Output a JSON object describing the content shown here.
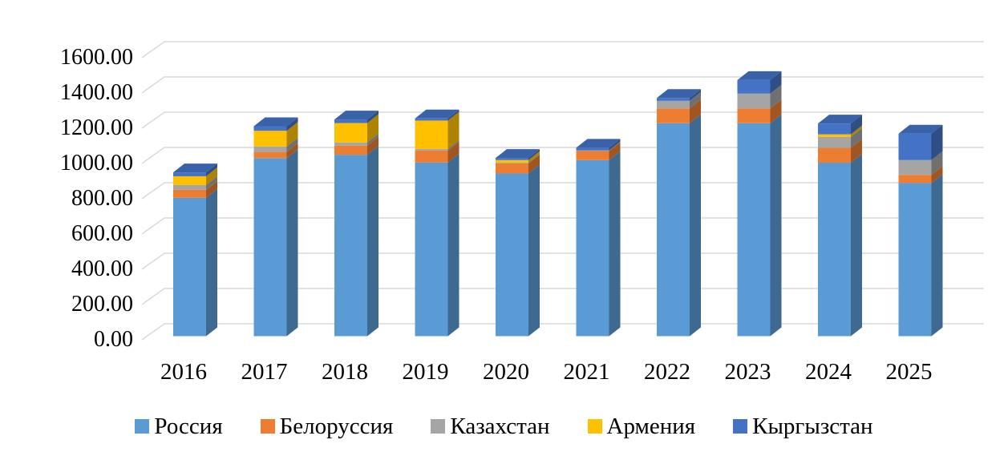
{
  "chart_data": {
    "type": "bar",
    "variant": "stacked-column-3d",
    "title": "",
    "xlabel": "",
    "ylabel": "",
    "grid": true,
    "legend_position": "bottom",
    "ylim": [
      0,
      1600
    ],
    "ytick_step": 200,
    "ytick_labels": [
      "0.00",
      "200.00",
      "400.00",
      "600.00",
      "800.00",
      "1000.00",
      "1200.00",
      "1400.00",
      "1600.00"
    ],
    "categories": [
      "2016",
      "2017",
      "2018",
      "2019",
      "2020",
      "2021",
      "2022",
      "2023",
      "2024",
      "2025"
    ],
    "series": [
      {
        "name": "Россия",
        "color": "#5B9BD5",
        "values": [
          785,
          1010,
          1029,
          985,
          923,
          999,
          1208,
          1208,
          984,
          869
        ]
      },
      {
        "name": "Белоруссия",
        "color": "#ED7D31",
        "values": [
          45,
          35,
          52,
          68,
          57,
          51,
          84,
          84,
          84,
          46
        ]
      },
      {
        "name": "Казахстан",
        "color": "#A5A5A5",
        "values": [
          27,
          31,
          18,
          9,
          4,
          4,
          43,
          84,
          62,
          84
        ]
      },
      {
        "name": "Армения",
        "color": "#FFC000",
        "values": [
          50,
          89,
          110,
          161,
          15,
          0,
          0,
          0,
          15,
          0
        ]
      },
      {
        "name": "Кыргызстан",
        "color": "#4472C4",
        "values": [
          22,
          26,
          20,
          12,
          12,
          15,
          16,
          77,
          61,
          150
        ]
      }
    ],
    "totals": [
      929,
      1191,
      1229,
      1235,
      1011,
      1069,
      1351,
      1453,
      1206,
      1149
    ],
    "gridline_color": "#D9D9D9"
  }
}
